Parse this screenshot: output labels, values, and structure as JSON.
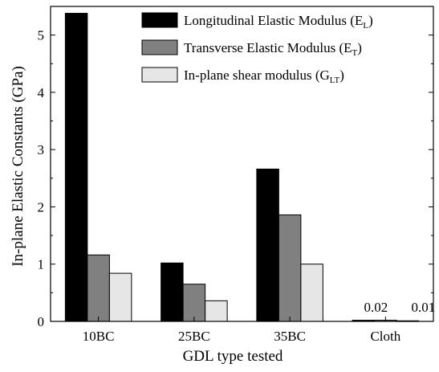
{
  "chart_data": {
    "type": "bar",
    "xlabel": "GDL type tested",
    "ylabel": "In-plane Elastic Constants (GPa)",
    "categories": [
      "10BC",
      "25BC",
      "35BC",
      "Cloth"
    ],
    "ylim": [
      0,
      5.5
    ],
    "yticks": [
      "0",
      "1",
      "2",
      "3",
      "4",
      "5"
    ],
    "legend_position": "top-right",
    "series": [
      {
        "name": "Longitudinal Elastic Modulus (E",
        "sub": "L",
        "close": ")",
        "color": "#000000",
        "values": [
          5.38,
          1.02,
          2.66,
          0.02
        ]
      },
      {
        "name": "Transverse Elastic Modulus (E",
        "sub": "T",
        "close": ")",
        "color": "#808080",
        "values": [
          1.16,
          0.65,
          1.86,
          0.02
        ]
      },
      {
        "name": "In-plane shear modulus (G",
        "sub": "LT",
        "close": ")",
        "color": "#e6e6e6",
        "values": [
          0.84,
          0.36,
          1.0,
          0.01
        ]
      }
    ],
    "annotations": [
      {
        "text": "0.02",
        "category": "Cloth"
      },
      {
        "text": "0.01",
        "category": "Cloth"
      }
    ]
  }
}
